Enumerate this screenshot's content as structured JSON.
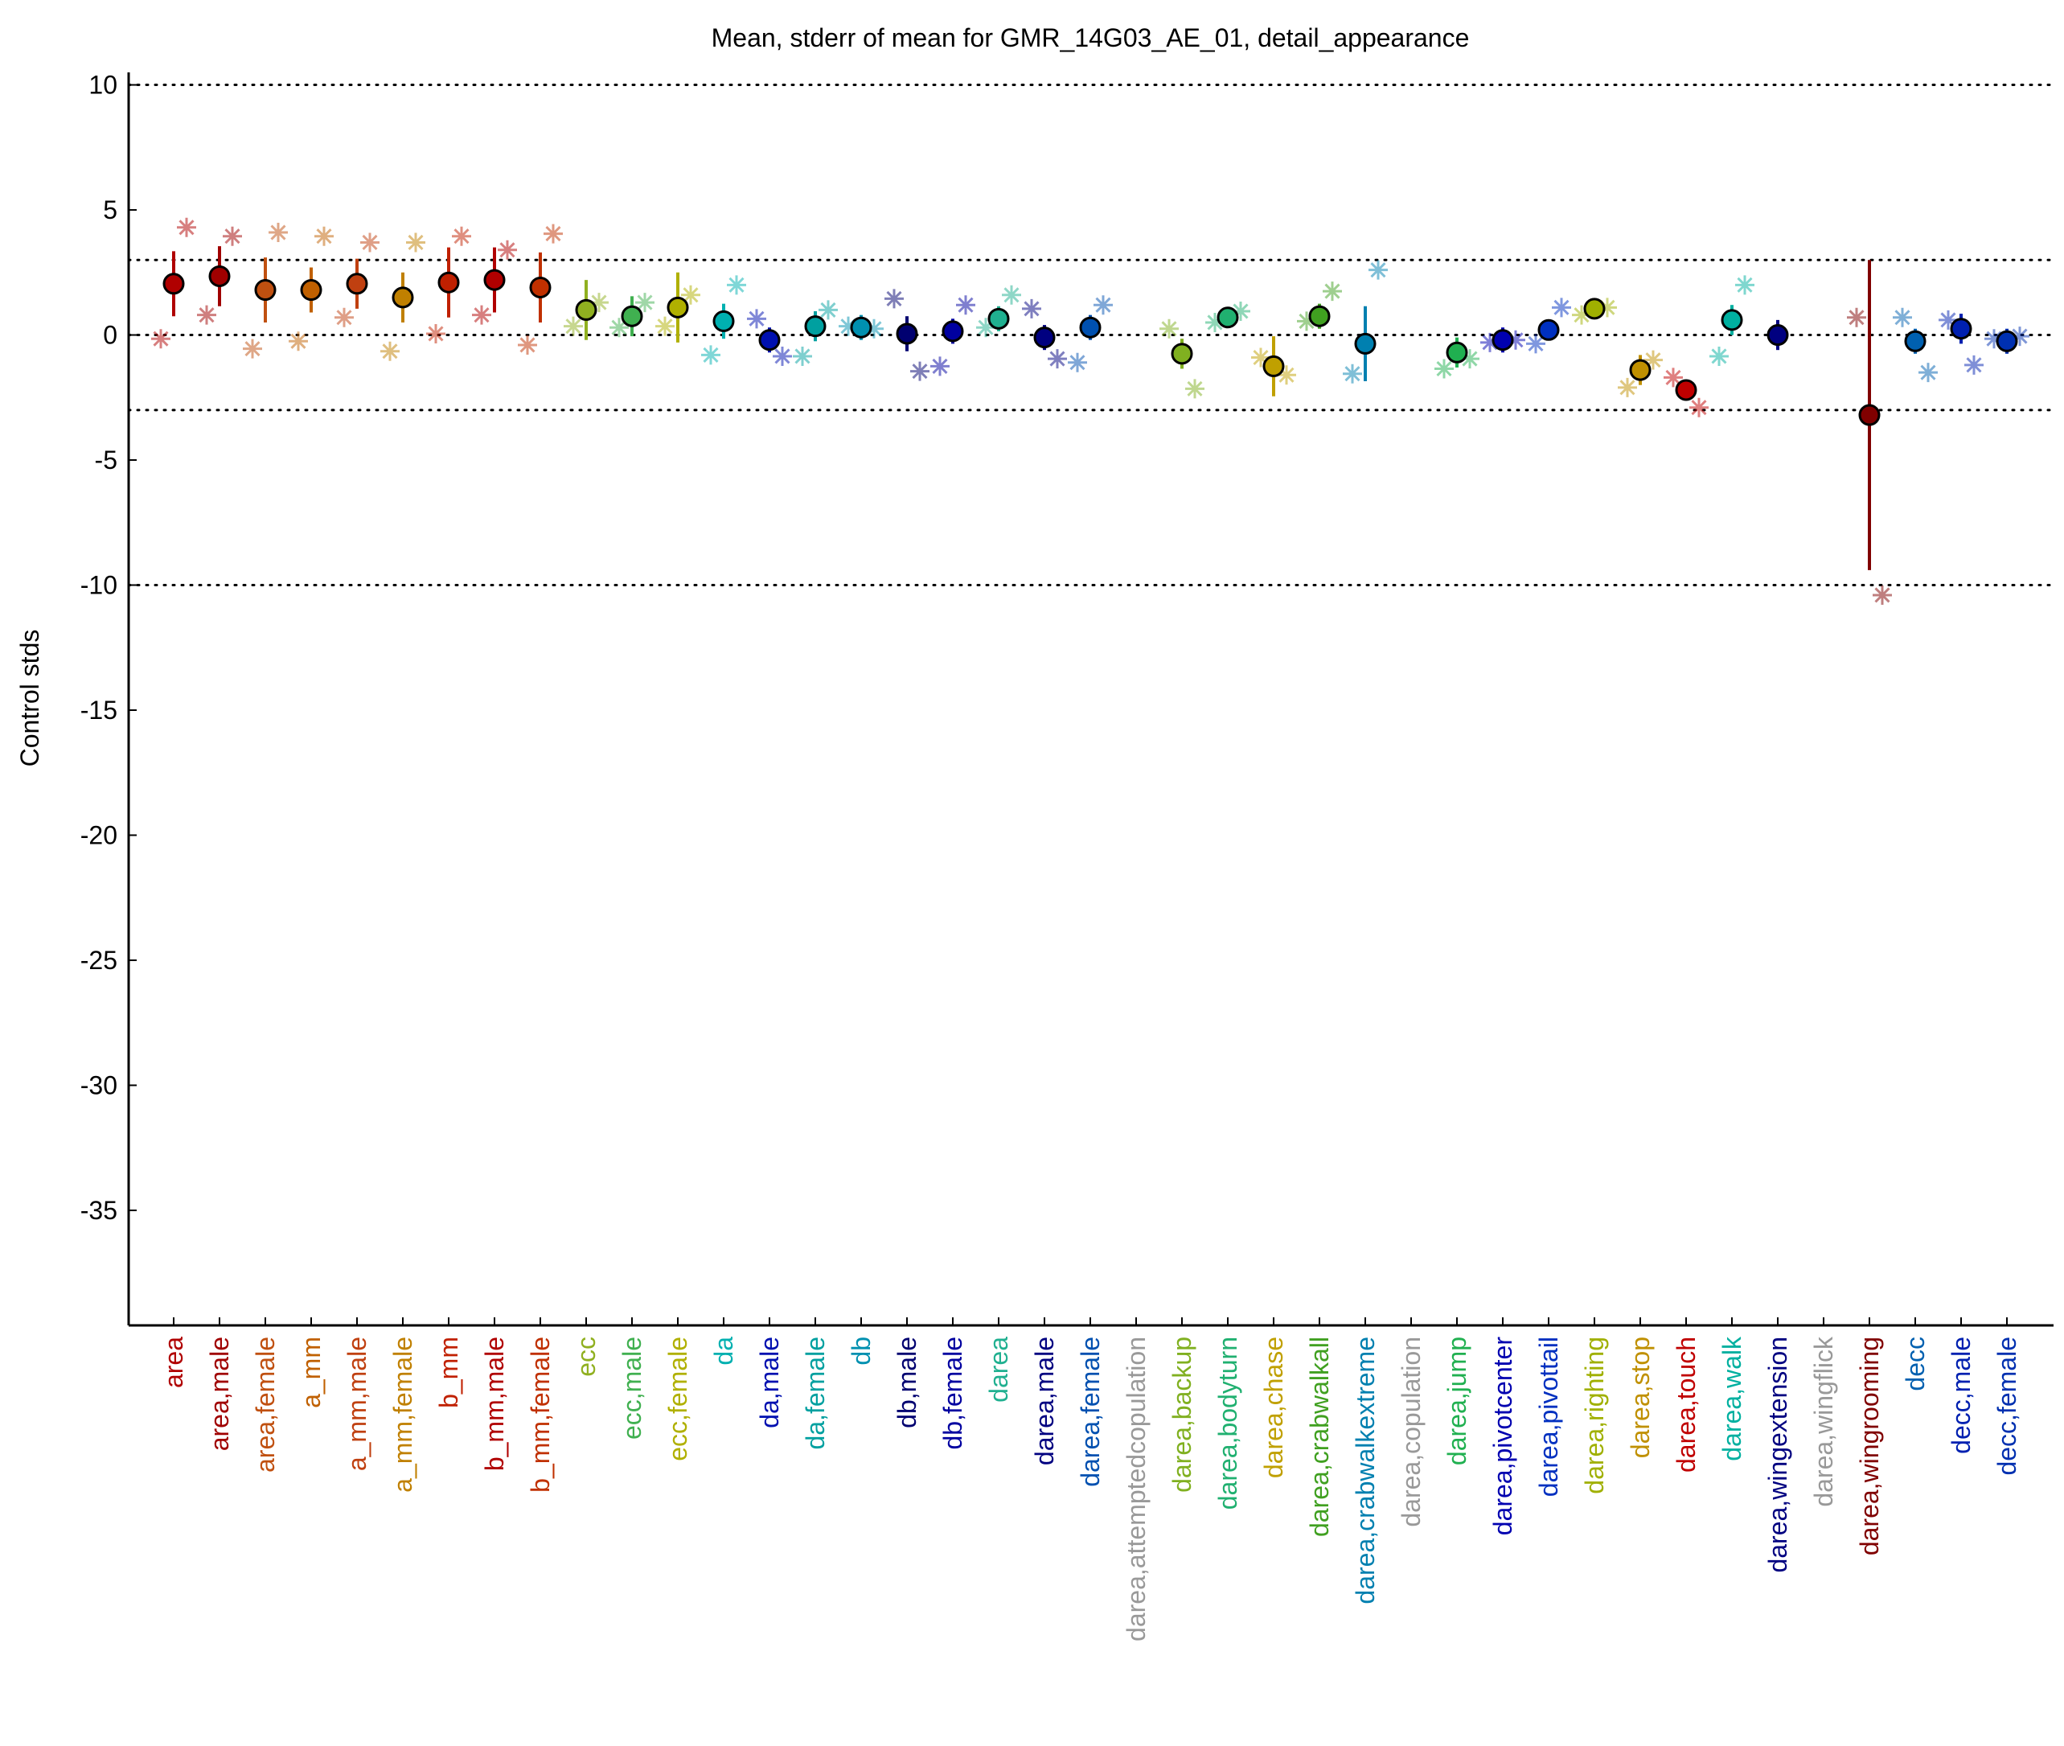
{
  "chart_data": {
    "type": "errorbar",
    "title": "Mean, stderr of mean for GMR_14G03_AE_01, detail_appearance",
    "ylabel": "Control stds",
    "categories": [
      "area",
      "area,male",
      "area,female",
      "a_mm",
      "a_mm,male",
      "a_mm,female",
      "b_mm",
      "b_mm,male",
      "b_mm,female",
      "ecc",
      "ecc,male",
      "ecc,female",
      "da",
      "da,male",
      "da,female",
      "db",
      "db,male",
      "db,female",
      "darea",
      "darea,male",
      "darea,female",
      "darea,attemptedcopulation",
      "darea,backup",
      "darea,bodyturn",
      "darea,chase",
      "darea,crabwalkall",
      "darea,crabwalkextreme",
      "darea,copulation",
      "darea,jump",
      "darea,pivotcenter",
      "darea,pivottail",
      "darea,righting",
      "darea,stop",
      "darea,touch",
      "darea,walk",
      "darea,wingextension",
      "darea,wingflick",
      "darea,wingrooming",
      "decc",
      "decc,male",
      "decc,female"
    ],
    "values": [
      2.05,
      2.35,
      1.8,
      1.8,
      2.05,
      1.5,
      2.1,
      2.2,
      1.9,
      1.0,
      0.75,
      1.1,
      0.55,
      -0.2,
      0.35,
      0.3,
      0.05,
      0.15,
      0.65,
      -0.1,
      0.3,
      null,
      -0.75,
      0.7,
      -1.25,
      0.75,
      -0.35,
      null,
      -0.7,
      -0.2,
      0.2,
      1.05,
      -1.4,
      -2.2,
      0.6,
      0.0,
      null,
      -3.2,
      -0.25,
      0.25,
      -0.25
    ],
    "errors": [
      1.3,
      1.2,
      1.3,
      0.9,
      1.0,
      1.0,
      1.4,
      1.3,
      1.4,
      1.2,
      0.8,
      1.4,
      0.7,
      0.5,
      0.6,
      0.5,
      0.7,
      0.5,
      0.5,
      0.5,
      0.5,
      null,
      0.6,
      0.3,
      1.2,
      0.5,
      1.5,
      null,
      0.6,
      0.5,
      0.4,
      0.4,
      0.6,
      0.4,
      0.6,
      0.6,
      null,
      6.2,
      0.5,
      0.6,
      0.5
    ],
    "stars_left": [
      -0.15,
      0.8,
      -0.55,
      -0.25,
      0.7,
      -0.65,
      0.05,
      0.8,
      -0.4,
      0.35,
      0.3,
      0.35,
      -0.8,
      0.65,
      -0.85,
      0.35,
      1.45,
      -1.25,
      0.3,
      1.05,
      -1.1,
      null,
      0.25,
      0.5,
      -0.9,
      0.55,
      -1.55,
      null,
      -1.35,
      -0.3,
      -0.35,
      0.8,
      -2.1,
      -1.7,
      -0.85,
      null,
      null,
      0.7,
      0.7,
      0.6,
      -0.15
    ],
    "stars_right": [
      4.3,
      3.95,
      4.1,
      3.95,
      3.7,
      3.7,
      3.95,
      3.4,
      4.05,
      1.3,
      1.3,
      1.6,
      2.0,
      -0.85,
      1.0,
      0.25,
      -1.45,
      1.2,
      1.6,
      -0.95,
      1.2,
      null,
      -2.15,
      0.95,
      -1.6,
      1.75,
      2.6,
      null,
      -0.95,
      -0.2,
      1.1,
      1.1,
      -1.0,
      -2.9,
      2.0,
      null,
      null,
      -10.4,
      -1.5,
      -1.2,
      -0.05
    ],
    "colors": [
      "#b00000",
      "#a00000",
      "#c05010",
      "#c06000",
      "#c04010",
      "#c08000",
      "#c02000",
      "#b00000",
      "#c03000",
      "#90b020",
      "#40b050",
      "#b0b000",
      "#00b0b0",
      "#0010b0",
      "#00a0a0",
      "#0090b0",
      "#000070",
      "#0000a0",
      "#20b090",
      "#000080",
      "#0050b0",
      "#999999",
      "#80b020",
      "#20b070",
      "#c0a000",
      "#40a020",
      "#0080b0",
      "#999999",
      "#20b050",
      "#0000b0",
      "#0030c0",
      "#a0b000",
      "#c09000",
      "#c00000",
      "#00b0a0",
      "#000080",
      "#999999",
      "#800000",
      "#0060b0",
      "#0020b0",
      "#0030b0"
    ],
    "ylim": [
      -39.6,
      10.5
    ],
    "yticks": [
      -35,
      -30,
      -25,
      -20,
      -15,
      -10,
      -5,
      0,
      5,
      10
    ],
    "reference_lines": [
      -10,
      -3,
      0,
      3,
      10
    ]
  }
}
